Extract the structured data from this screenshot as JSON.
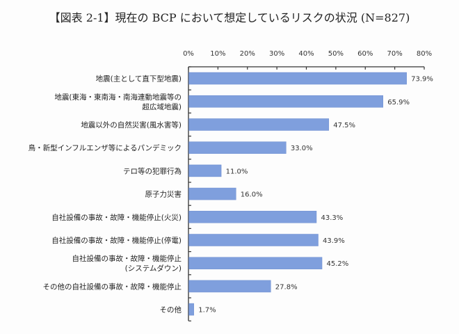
{
  "chart_data": {
    "type": "bar",
    "orientation": "horizontal",
    "title": "【図表 2-1】現在の BCP において想定しているリスクの状況 (N=827)",
    "xlabel": "",
    "ylabel": "",
    "xlim": [
      0,
      80
    ],
    "x_ticks": [
      "0%",
      "10%",
      "20%",
      "30%",
      "40%",
      "50%",
      "60%",
      "70%",
      "80%"
    ],
    "x_tick_values": [
      0,
      10,
      20,
      30,
      40,
      50,
      60,
      70,
      80
    ],
    "grid": false,
    "bar_color": "#7f9fdd",
    "categories": [
      [
        "地震(主として直下型地震)"
      ],
      [
        "地震(東海・東南海・南海連動地震等の",
        "超広域地震)"
      ],
      [
        "地震以外の自然災害(風水害等)"
      ],
      [
        "鳥・新型インフルエンザ等によるパンデミック"
      ],
      [
        "テロ等の犯罪行為"
      ],
      [
        "原子力災害"
      ],
      [
        "自社設備の事故・故障・機能停止(火災)"
      ],
      [
        "自社設備の事故・故障・機能停止(停電)"
      ],
      [
        "自社設備の事故・故障・機能停止",
        "(システムダウン)"
      ],
      [
        "その他の自社設備の事故・故障・機能停止"
      ],
      [
        "その他"
      ]
    ],
    "values": [
      73.9,
      65.9,
      47.5,
      33.0,
      11.0,
      16.0,
      43.3,
      43.9,
      45.2,
      27.8,
      1.7
    ],
    "value_labels": [
      "73.9%",
      "65.9%",
      "47.5%",
      "33.0%",
      "11.0%",
      "16.0%",
      "43.3%",
      "43.9%",
      "45.2%",
      "27.8%",
      "1.7%"
    ]
  }
}
